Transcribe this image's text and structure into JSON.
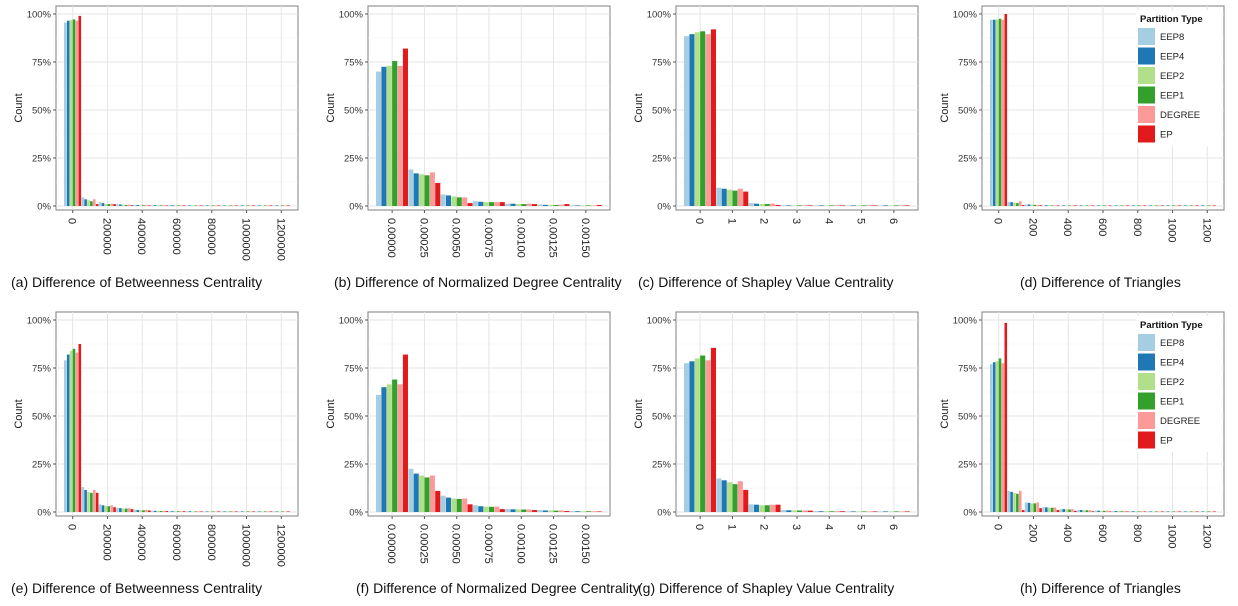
{
  "legend": {
    "title": "Partition Type",
    "items": [
      "EEP8",
      "EEP4",
      "EEP2",
      "EEP1",
      "DEGREE",
      "EP"
    ],
    "colors": [
      "#a6cee3",
      "#1f78b4",
      "#b2df8a",
      "#33a02c",
      "#fb9a99",
      "#e31a1c"
    ]
  },
  "chart_data": [
    {
      "id": "a",
      "type": "bar",
      "caption": "(a) Difference of Betweenness Centrality",
      "xlabel": "",
      "ylabel": "Count",
      "ylim": [
        0,
        1.0
      ],
      "y_ticks": [
        "0%",
        "25%",
        "50%",
        "75%",
        "100%"
      ],
      "x_ticks": [
        "0",
        "200000",
        "400000",
        "600000",
        "800000",
        "1000000",
        "1200000"
      ],
      "x_tick_bins": [
        0,
        2,
        4,
        6,
        8,
        10,
        12
      ],
      "series": [
        {
          "name": "EEP8",
          "values": [
            0.955,
            0.045,
            0.02,
            0.01,
            0.005,
            0.005,
            0.005,
            0.004,
            0.004,
            0.003,
            0.003,
            0.003,
            0.003
          ]
        },
        {
          "name": "EEP4",
          "values": [
            0.965,
            0.035,
            0.015,
            0.008,
            0.005,
            0.004,
            0.004,
            0.003,
            0.003,
            0.003,
            0.003,
            0.002,
            0.002
          ]
        },
        {
          "name": "EEP2",
          "values": [
            0.968,
            0.03,
            0.01,
            0.006,
            0.004,
            0.004,
            0.003,
            0.003,
            0.003,
            0.003,
            0.002,
            0.002,
            0.002
          ]
        },
        {
          "name": "EEP1",
          "values": [
            0.972,
            0.025,
            0.01,
            0.005,
            0.004,
            0.003,
            0.003,
            0.003,
            0.002,
            0.002,
            0.002,
            0.002,
            0.002
          ]
        },
        {
          "name": "DEGREE",
          "values": [
            0.965,
            0.035,
            0.012,
            0.007,
            0.005,
            0.004,
            0.004,
            0.003,
            0.003,
            0.003,
            0.002,
            0.002,
            0.002
          ]
        },
        {
          "name": "EP",
          "values": [
            0.99,
            0.01,
            0.01,
            0.004,
            0.003,
            0.003,
            0.003,
            0.002,
            0.002,
            0.002,
            0.002,
            0.002,
            0.002
          ]
        }
      ]
    },
    {
      "id": "b",
      "type": "bar",
      "caption": "(b) Difference of Normalized Degree Centrality",
      "xlabel": "",
      "ylabel": "Count",
      "ylim": [
        0,
        1.0
      ],
      "y_ticks": [
        "0%",
        "25%",
        "50%",
        "75%",
        "100%"
      ],
      "x_ticks": [
        "0.00000",
        "0.00025",
        "0.00050",
        "0.00075",
        "0.00100",
        "0.00125",
        "0.00150"
      ],
      "x_tick_bins": [
        0,
        1,
        2,
        3,
        4,
        5,
        6
      ],
      "series": [
        {
          "name": "EEP8",
          "values": [
            0.7,
            0.19,
            0.06,
            0.025,
            0.012,
            0.008,
            0.004
          ]
        },
        {
          "name": "EEP4",
          "values": [
            0.725,
            0.17,
            0.055,
            0.022,
            0.012,
            0.006,
            0.003
          ]
        },
        {
          "name": "EEP2",
          "values": [
            0.73,
            0.165,
            0.05,
            0.02,
            0.01,
            0.006,
            0.003
          ]
        },
        {
          "name": "EEP1",
          "values": [
            0.755,
            0.16,
            0.045,
            0.02,
            0.01,
            0.005,
            0.003
          ]
        },
        {
          "name": "DEGREE",
          "values": [
            0.73,
            0.175,
            0.045,
            0.02,
            0.012,
            0.007,
            0.003
          ]
        },
        {
          "name": "EP",
          "values": [
            0.82,
            0.12,
            0.015,
            0.02,
            0.01,
            0.01,
            0.005
          ]
        }
      ]
    },
    {
      "id": "c",
      "type": "bar",
      "caption": "(c) Difference of Shapley Value Centrality",
      "xlabel": "",
      "ylabel": "Count",
      "ylim": [
        0,
        1.0
      ],
      "y_ticks": [
        "0%",
        "25%",
        "50%",
        "75%",
        "100%"
      ],
      "x_ticks": [
        "0",
        "1",
        "2",
        "3",
        "4",
        "5",
        "6"
      ],
      "x_tick_bins": [
        0,
        1,
        2,
        3,
        4,
        5,
        6
      ],
      "series": [
        {
          "name": "EEP8",
          "values": [
            0.885,
            0.095,
            0.015,
            0.004,
            0.002,
            0.001,
            0.001
          ]
        },
        {
          "name": "EEP4",
          "values": [
            0.895,
            0.09,
            0.012,
            0.003,
            0.002,
            0.001,
            0.001
          ]
        },
        {
          "name": "EEP2",
          "values": [
            0.905,
            0.085,
            0.01,
            0.003,
            0.001,
            0.001,
            0.001
          ]
        },
        {
          "name": "EEP1",
          "values": [
            0.91,
            0.08,
            0.01,
            0.003,
            0.001,
            0.001,
            0.001
          ]
        },
        {
          "name": "DEGREE",
          "values": [
            0.895,
            0.09,
            0.012,
            0.003,
            0.001,
            0.001,
            0.001
          ]
        },
        {
          "name": "EP",
          "values": [
            0.92,
            0.075,
            0.005,
            0.001,
            0.001,
            0.001,
            0.001
          ]
        }
      ]
    },
    {
      "id": "d",
      "type": "bar",
      "caption": "(d) Difference of Triangles",
      "xlabel": "",
      "ylabel": "Count",
      "ylim": [
        0,
        1.0
      ],
      "y_ticks": [
        "0%",
        "25%",
        "50%",
        "75%",
        "100%"
      ],
      "x_ticks": [
        "0",
        "200",
        "400",
        "600",
        "800",
        "1000",
        "1200"
      ],
      "x_tick_bins": [
        0,
        2,
        4,
        6,
        8,
        10,
        12
      ],
      "legend_position": "top-right",
      "series": [
        {
          "name": "EEP8",
          "values": [
            0.97,
            0.02,
            0.008,
            0.004,
            0.003,
            0.002,
            0.002,
            0.002,
            0.002,
            0.001,
            0.001,
            0.001,
            0.001
          ]
        },
        {
          "name": "EEP4",
          "values": [
            0.97,
            0.02,
            0.008,
            0.004,
            0.003,
            0.002,
            0.002,
            0.002,
            0.002,
            0.001,
            0.001,
            0.001,
            0.001
          ]
        },
        {
          "name": "EEP2",
          "values": [
            0.972,
            0.018,
            0.007,
            0.004,
            0.002,
            0.002,
            0.002,
            0.002,
            0.001,
            0.001,
            0.001,
            0.001,
            0.001
          ]
        },
        {
          "name": "EEP1",
          "values": [
            0.975,
            0.015,
            0.006,
            0.003,
            0.002,
            0.002,
            0.002,
            0.001,
            0.001,
            0.001,
            0.001,
            0.001,
            0.001
          ]
        },
        {
          "name": "DEGREE",
          "values": [
            0.97,
            0.025,
            0.006,
            0.003,
            0.002,
            0.002,
            0.001,
            0.001,
            0.001,
            0.001,
            0.001,
            0.001,
            0.001
          ]
        },
        {
          "name": "EP",
          "values": [
            1.0,
            0.005,
            0.004,
            0.002,
            0.001,
            0.001,
            0.001,
            0.001,
            0.001,
            0.001,
            0.001,
            0.001,
            0.001
          ]
        }
      ]
    },
    {
      "id": "e",
      "type": "bar",
      "caption": "(e) Difference of Betweenness Centrality",
      "xlabel": "",
      "ylabel": "Count",
      "ylim": [
        0,
        1.0
      ],
      "y_ticks": [
        "0%",
        "25%",
        "50%",
        "75%",
        "100%"
      ],
      "x_ticks": [
        "0",
        "200000",
        "400000",
        "600000",
        "800000",
        "1000000",
        "1200000"
      ],
      "x_tick_bins": [
        0,
        2,
        4,
        6,
        8,
        10,
        12
      ],
      "series": [
        {
          "name": "EEP8",
          "values": [
            0.79,
            0.13,
            0.04,
            0.022,
            0.012,
            0.007,
            0.005,
            0.004,
            0.003,
            0.003,
            0.002,
            0.002,
            0.002
          ]
        },
        {
          "name": "EEP4",
          "values": [
            0.82,
            0.115,
            0.035,
            0.02,
            0.01,
            0.006,
            0.004,
            0.004,
            0.003,
            0.002,
            0.002,
            0.002,
            0.002
          ]
        },
        {
          "name": "EEP2",
          "values": [
            0.84,
            0.105,
            0.032,
            0.018,
            0.01,
            0.006,
            0.004,
            0.003,
            0.003,
            0.002,
            0.002,
            0.002,
            0.002
          ]
        },
        {
          "name": "EEP1",
          "values": [
            0.85,
            0.1,
            0.03,
            0.018,
            0.009,
            0.005,
            0.004,
            0.003,
            0.003,
            0.002,
            0.002,
            0.002,
            0.002
          ]
        },
        {
          "name": "DEGREE",
          "values": [
            0.83,
            0.115,
            0.035,
            0.02,
            0.01,
            0.006,
            0.004,
            0.004,
            0.003,
            0.002,
            0.002,
            0.002,
            0.002
          ]
        },
        {
          "name": "EP",
          "values": [
            0.875,
            0.1,
            0.025,
            0.015,
            0.008,
            0.005,
            0.004,
            0.003,
            0.002,
            0.002,
            0.002,
            0.002,
            0.002
          ]
        }
      ]
    },
    {
      "id": "f",
      "type": "bar",
      "caption": "(f) Difference of Normalized Degree Centrality",
      "xlabel": "",
      "ylabel": "Count",
      "ylim": [
        0,
        1.0
      ],
      "y_ticks": [
        "0%",
        "25%",
        "50%",
        "75%",
        "100%"
      ],
      "x_ticks": [
        "0.00000",
        "0.00025",
        "0.00050",
        "0.00075",
        "0.00100",
        "0.00125",
        "0.00150"
      ],
      "x_tick_bins": [
        0,
        1,
        2,
        3,
        4,
        5,
        6
      ],
      "series": [
        {
          "name": "EEP8",
          "values": [
            0.61,
            0.225,
            0.085,
            0.035,
            0.015,
            0.01,
            0.005
          ]
        },
        {
          "name": "EEP4",
          "values": [
            0.65,
            0.2,
            0.075,
            0.03,
            0.014,
            0.008,
            0.004
          ]
        },
        {
          "name": "EEP2",
          "values": [
            0.665,
            0.19,
            0.07,
            0.028,
            0.013,
            0.008,
            0.004
          ]
        },
        {
          "name": "EEP1",
          "values": [
            0.69,
            0.18,
            0.068,
            0.027,
            0.013,
            0.007,
            0.004
          ]
        },
        {
          "name": "DEGREE",
          "values": [
            0.665,
            0.19,
            0.07,
            0.028,
            0.013,
            0.008,
            0.004
          ]
        },
        {
          "name": "EP",
          "values": [
            0.82,
            0.11,
            0.04,
            0.015,
            0.01,
            0.005,
            0.003
          ]
        }
      ]
    },
    {
      "id": "g",
      "type": "bar",
      "caption": "(g) Difference of Shapley Value Centrality",
      "xlabel": "",
      "ylabel": "Count",
      "ylim": [
        0,
        1.0
      ],
      "y_ticks": [
        "0%",
        "25%",
        "50%",
        "75%",
        "100%"
      ],
      "x_ticks": [
        "0",
        "1",
        "2",
        "3",
        "4",
        "5",
        "6"
      ],
      "x_tick_bins": [
        0,
        1,
        2,
        3,
        4,
        5,
        6
      ],
      "series": [
        {
          "name": "EEP8",
          "values": [
            0.775,
            0.175,
            0.04,
            0.01,
            0.005,
            0.003,
            0.002
          ]
        },
        {
          "name": "EEP4",
          "values": [
            0.785,
            0.165,
            0.038,
            0.009,
            0.004,
            0.003,
            0.002
          ]
        },
        {
          "name": "EEP2",
          "values": [
            0.8,
            0.155,
            0.035,
            0.008,
            0.004,
            0.002,
            0.002
          ]
        },
        {
          "name": "EEP1",
          "values": [
            0.815,
            0.145,
            0.035,
            0.008,
            0.004,
            0.002,
            0.002
          ]
        },
        {
          "name": "DEGREE",
          "values": [
            0.79,
            0.16,
            0.038,
            0.008,
            0.004,
            0.002,
            0.002
          ]
        },
        {
          "name": "EP",
          "values": [
            0.855,
            0.115,
            0.038,
            0.007,
            0.004,
            0.002,
            0.002
          ]
        }
      ]
    },
    {
      "id": "h",
      "type": "bar",
      "caption": "(h) Difference of Triangles",
      "xlabel": "",
      "ylabel": "Count",
      "ylim": [
        0,
        1.0
      ],
      "y_ticks": [
        "0%",
        "25%",
        "50%",
        "75%",
        "100%"
      ],
      "x_ticks": [
        "0",
        "200",
        "400",
        "600",
        "800",
        "1000",
        "1200"
      ],
      "x_tick_bins": [
        0,
        2,
        4,
        6,
        8,
        10,
        12
      ],
      "legend_position": "top-right",
      "series": [
        {
          "name": "EEP8",
          "values": [
            0.77,
            0.11,
            0.05,
            0.025,
            0.015,
            0.01,
            0.007,
            0.005,
            0.004,
            0.003,
            0.003,
            0.002,
            0.002
          ]
        },
        {
          "name": "EEP4",
          "values": [
            0.78,
            0.105,
            0.048,
            0.024,
            0.015,
            0.01,
            0.007,
            0.005,
            0.004,
            0.003,
            0.003,
            0.002,
            0.002
          ]
        },
        {
          "name": "EEP2",
          "values": [
            0.785,
            0.1,
            0.045,
            0.023,
            0.014,
            0.009,
            0.006,
            0.005,
            0.004,
            0.003,
            0.002,
            0.002,
            0.002
          ]
        },
        {
          "name": "EEP1",
          "values": [
            0.8,
            0.095,
            0.045,
            0.022,
            0.013,
            0.009,
            0.006,
            0.004,
            0.003,
            0.003,
            0.002,
            0.002,
            0.002
          ]
        },
        {
          "name": "DEGREE",
          "values": [
            0.775,
            0.11,
            0.05,
            0.024,
            0.015,
            0.01,
            0.007,
            0.005,
            0.004,
            0.003,
            0.003,
            0.002,
            0.002
          ]
        },
        {
          "name": "EP",
          "values": [
            0.985,
            0.01,
            0.02,
            0.01,
            0.006,
            0.004,
            0.003,
            0.002,
            0.002,
            0.002,
            0.002,
            0.002,
            0.002
          ]
        }
      ]
    }
  ]
}
